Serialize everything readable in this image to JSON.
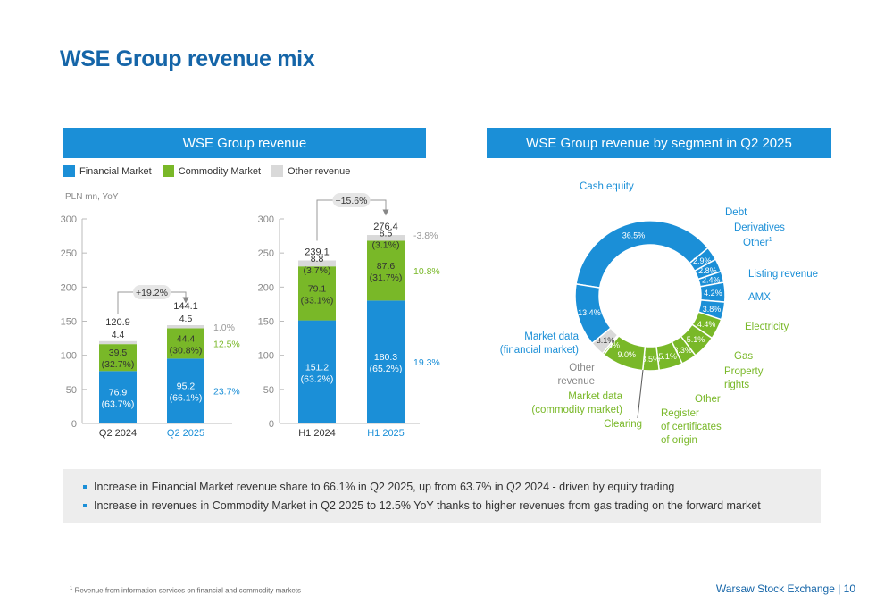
{
  "title": "WSE Group revenue mix",
  "left_panel": {
    "header": "WSE Group revenue"
  },
  "right_panel": {
    "header": "WSE Group revenue by segment in Q2 2025"
  },
  "legend": [
    {
      "label": "Financial Market",
      "color": "#1b8fd7"
    },
    {
      "label": "Commodity Market",
      "color": "#79b828"
    },
    {
      "label": "Other revenue",
      "color": "#d9d9d9"
    }
  ],
  "unit_label": "PLN mn, YoY",
  "chart_data": [
    {
      "type": "bar",
      "stacked": true,
      "categories": [
        "Q2 2024",
        "Q2 2025"
      ],
      "highlight_category": "Q2 2025",
      "ylim": [
        0,
        300
      ],
      "yticks": [
        "0",
        "50",
        "100",
        "150",
        "200",
        "250",
        "300"
      ],
      "series": [
        {
          "name": "Financial Market",
          "values": [
            76.9,
            95.2
          ],
          "labels": [
            "76.9",
            "95.2"
          ],
          "shares": [
            "(63.7%)",
            "(66.1%)"
          ],
          "yoy": "23.7%"
        },
        {
          "name": "Commodity Market",
          "values": [
            39.5,
            44.4
          ],
          "labels": [
            "39.5",
            "44.4"
          ],
          "shares": [
            "(32.7%)",
            "(30.8%)"
          ],
          "yoy": "12.5%"
        },
        {
          "name": "Other revenue",
          "values": [
            4.4,
            4.5
          ],
          "labels": [
            "4.4",
            "4.5"
          ],
          "shares": [
            "",
            ""
          ],
          "yoy": "1.0%"
        }
      ],
      "totals": [
        "120.9",
        "144.1"
      ],
      "growth_label": "+19.2%"
    },
    {
      "type": "bar",
      "stacked": true,
      "categories": [
        "H1 2024",
        "H1 2025"
      ],
      "highlight_category": "H1 2025",
      "ylim": [
        0,
        300
      ],
      "yticks": [
        "0",
        "50",
        "100",
        "150",
        "200",
        "250",
        "300"
      ],
      "series": [
        {
          "name": "Financial Market",
          "values": [
            151.2,
            180.3
          ],
          "labels": [
            "151.2",
            "180.3"
          ],
          "shares": [
            "(63.2%)",
            "(65.2%)"
          ],
          "yoy": "19.3%"
        },
        {
          "name": "Commodity Market",
          "values": [
            79.1,
            87.6
          ],
          "labels": [
            "79.1",
            "87.6"
          ],
          "shares": [
            "(33.1%)",
            "(31.7%)"
          ],
          "yoy": "10.8%"
        },
        {
          "name": "Other revenue",
          "values": [
            8.8,
            8.5
          ],
          "labels": [
            "8.8",
            "8.5"
          ],
          "shares": [
            "(3.7%)",
            "(3.1%)"
          ],
          "yoy": "-3.8%"
        }
      ],
      "totals": [
        "239.1",
        "276.4"
      ],
      "growth_label": "+15.6%"
    },
    {
      "type": "pie",
      "donut": true,
      "slices": [
        {
          "name": "Cash equity",
          "value": 36.5,
          "label": "36.5%",
          "color": "#1b8fd7"
        },
        {
          "name": "Debt",
          "value": 2.9,
          "label": "2.9%",
          "color": "#1b8fd7"
        },
        {
          "name": "Derivatives",
          "value": 2.8,
          "label": "2.8%",
          "color": "#1b8fd7"
        },
        {
          "name": "Other",
          "sup": "1",
          "value": 2.4,
          "label": "2.4%",
          "color": "#1b8fd7"
        },
        {
          "name": "Listing revenue",
          "value": 4.2,
          "label": "4.2%",
          "color": "#1b8fd7"
        },
        {
          "name": "AMX",
          "value": 3.8,
          "label": "3.8%",
          "color": "#1b8fd7"
        },
        {
          "name": "Electricity",
          "value": 4.4,
          "label": "4.4%",
          "color": "#79b828"
        },
        {
          "name": "Gas",
          "value": 5.1,
          "label": "5.1%",
          "color": "#79b828"
        },
        {
          "name": "Property rights",
          "value": 3.3,
          "label": "3.3%",
          "color": "#79b828"
        },
        {
          "name": "Other",
          "value": 5.1,
          "label": "5.1%",
          "color": "#79b828"
        },
        {
          "name": "Register of certificates of origin",
          "value": 3.5,
          "label": "3.5%",
          "color": "#79b828"
        },
        {
          "name": "Clearing",
          "value": 9.0,
          "label": "9.0%",
          "color": "#79b828"
        },
        {
          "name": "Market data (commodity market)",
          "value": 0.4,
          "label": "0.4%",
          "color": "#79b828"
        },
        {
          "name": "Other revenue",
          "value": 3.1,
          "label": "3.1%",
          "color": "#d9d9d9"
        },
        {
          "name": "Market data (financial market)",
          "value": 13.4,
          "label": "13.4%",
          "color": "#1b8fd7"
        }
      ]
    }
  ],
  "bullets": [
    "Increase in Financial Market revenue share to 66.1% in Q2 2025, up from 63.7% in Q2 2024 - driven by equity trading",
    "Increase in revenues in Commodity Market in Q2 2025 to 12.5% YoY thanks to higher revenues from gas trading on the forward market"
  ],
  "footnote": {
    "sup": "1",
    "text": "Revenue from information services on financial and commodity markets"
  },
  "footer": "Warsaw Stock Exchange | 10",
  "colors": {
    "financial": "#1b8fd7",
    "commodity": "#79b828",
    "other": "#d9d9d9",
    "title": "#1565a8"
  }
}
